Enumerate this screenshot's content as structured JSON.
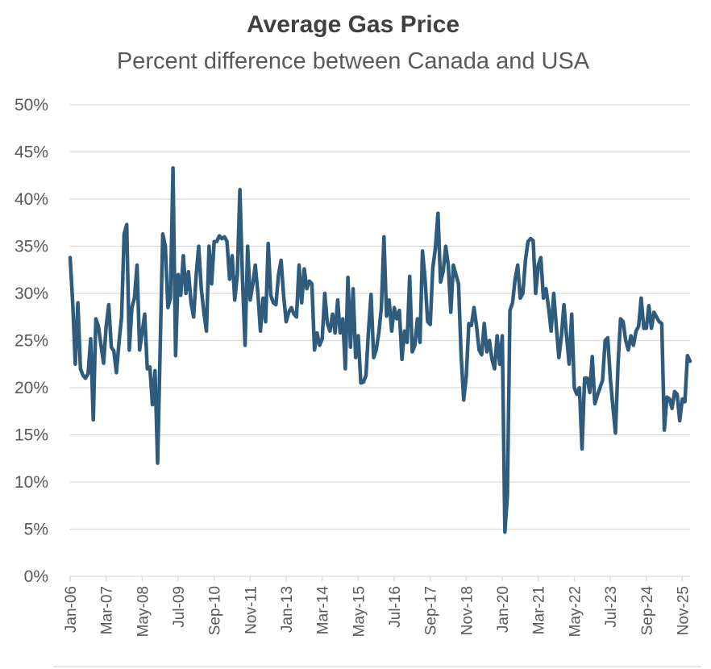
{
  "chart_data": {
    "type": "line",
    "title": "Average Gas Price",
    "subtitle": "Percent difference between Canada and USA",
    "xlabel": "",
    "ylabel": "",
    "ylim": [
      0,
      50
    ],
    "yticks": [
      "0%",
      "5%",
      "10%",
      "15%",
      "20%",
      "25%",
      "30%",
      "35%",
      "40%",
      "45%",
      "50%"
    ],
    "ytick_values": [
      0,
      5,
      10,
      15,
      20,
      25,
      30,
      35,
      40,
      45,
      50
    ],
    "xticks": [
      "Jan-06",
      "Mar-07",
      "May-08",
      "Jul-09",
      "Sep-10",
      "Nov-11",
      "Jan-13",
      "Mar-14",
      "May-15",
      "Jul-16",
      "Sep-17",
      "Nov-18",
      "Jan-20",
      "Mar-21",
      "May-22",
      "Jul-23",
      "Sep-24",
      "Nov-25"
    ],
    "grid": true,
    "legend": "none",
    "color": "#2f5b7c",
    "series": [
      {
        "name": "Percent difference",
        "start": "Jan-06",
        "step": "month",
        "values": [
          33.8,
          29.0,
          22.5,
          29.0,
          22.0,
          21.3,
          21.0,
          21.5,
          25.2,
          16.6,
          27.3,
          26.5,
          24.5,
          22.6,
          26.5,
          28.8,
          24.3,
          23.9,
          21.6,
          24.8,
          27.5,
          36.3,
          37.3,
          24.0,
          28.5,
          29.5,
          33.0,
          24.0,
          25.8,
          27.8,
          22.0,
          22.2,
          18.2,
          21.8,
          12.0,
          24.2,
          36.3,
          35.0,
          28.5,
          29.5,
          43.3,
          23.4,
          32.0,
          29.8,
          34.0,
          30.0,
          32.3,
          29.0,
          27.5,
          32.0,
          35.0,
          30.5,
          28.0,
          26.0,
          35.0,
          31.0,
          35.5,
          35.5,
          36.1,
          35.8,
          36.0,
          35.5,
          31.5,
          34.0,
          29.3,
          32.0,
          41.0,
          31.5,
          24.5,
          35.0,
          29.3,
          31.0,
          33.0,
          30.0,
          26.0,
          29.5,
          27.0,
          35.3,
          29.8,
          29.0,
          28.8,
          32.0,
          33.5,
          29.8,
          27.0,
          28.0,
          28.5,
          27.8,
          27.5,
          33.0,
          29.0,
          32.6,
          30.5,
          31.3,
          31.0,
          24.0,
          25.8,
          24.5,
          25.2,
          30.0,
          26.8,
          26.0,
          27.8,
          25.8,
          29.3,
          25.8,
          27.3,
          22.0,
          31.7,
          24.3,
          30.5,
          23.2,
          25.5,
          20.5,
          20.6,
          21.3,
          26.0,
          29.9,
          23.2,
          24.0,
          25.8,
          28.5,
          36.0,
          27.6,
          29.3,
          26.0,
          28.5,
          27.3,
          28.2,
          23.0,
          26.0,
          24.8,
          31.8,
          23.8,
          24.5,
          27.3,
          24.8,
          34.5,
          31.5,
          27.0,
          26.7,
          32.7,
          34.8,
          38.5,
          31.2,
          32.3,
          35.0,
          33.0,
          28.0,
          33.0,
          32.0,
          31.0,
          23.5,
          18.7,
          21.2,
          26.8,
          26.6,
          28.5,
          26.5,
          24.0,
          23.5,
          26.8,
          23.8,
          25.0,
          23.0,
          22.0,
          25.5,
          22.5,
          25.5,
          4.7,
          8.5,
          28.2,
          29.0,
          31.5,
          33.0,
          29.5,
          30.0,
          33.5,
          35.5,
          35.8,
          35.6,
          30.0,
          33.0,
          33.8,
          29.5,
          30.5,
          28.5,
          26.0,
          30.0,
          26.5,
          23.2,
          25.5,
          28.8,
          25.5,
          22.5,
          27.8,
          20.0,
          19.3,
          20.0,
          13.5,
          21.0,
          21.0,
          19.5,
          23.3,
          18.3,
          19.2,
          20.0,
          20.8,
          25.0,
          25.3,
          21.0,
          18.0,
          15.2,
          22.5,
          27.3,
          27.0,
          25.0,
          24.0,
          25.5,
          24.5,
          26.0,
          26.5,
          29.5,
          26.3,
          26.3,
          28.7,
          26.3,
          28.0,
          27.5,
          27.0,
          26.8,
          15.5,
          19.0,
          18.8,
          17.8,
          19.6,
          19.3,
          16.5,
          18.8,
          18.5,
          23.4,
          22.8
        ]
      }
    ]
  }
}
